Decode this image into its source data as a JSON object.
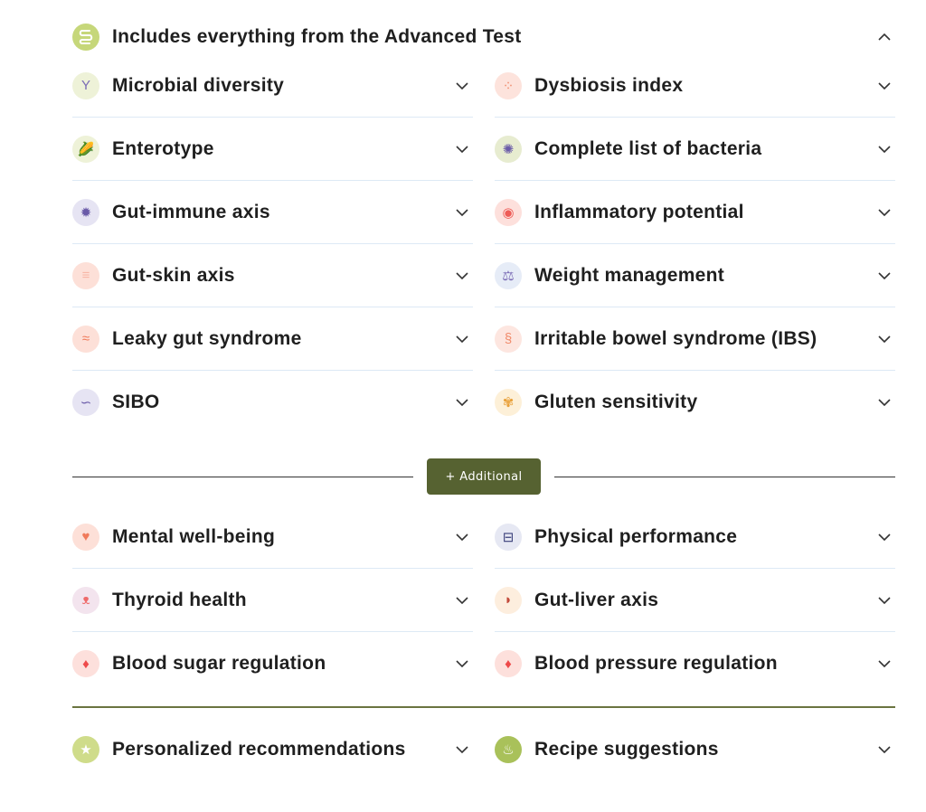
{
  "header": {
    "label": "Includes everything from the Advanced Test",
    "icon": "intestine-icon",
    "expanded": true
  },
  "advanced_items": [
    {
      "label": "Microbial diversity",
      "icon": "bacteria-mix-icon",
      "bg": "#eef2d8",
      "fg": "#7a6bb5",
      "glyph": "Y"
    },
    {
      "label": "Dysbiosis index",
      "icon": "bacteria-dots-icon",
      "bg": "#fde3dc",
      "fg": "#f08a6a",
      "glyph": "⁘"
    },
    {
      "label": "Enterotype",
      "icon": "corn-icon",
      "bg": "#eef2d8",
      "fg": "#e2a23b",
      "glyph": "🌽"
    },
    {
      "label": "Complete list of bacteria",
      "icon": "bacterium-icon",
      "bg": "#e7ecd0",
      "fg": "#6a5aa8",
      "glyph": "✺"
    },
    {
      "label": "Gut-immune axis",
      "icon": "virus-icon",
      "bg": "#e6e4f3",
      "fg": "#6a5aa8",
      "glyph": "✹"
    },
    {
      "label": "Inflammatory potential",
      "icon": "inflammation-icon",
      "bg": "#fde0dc",
      "fg": "#ee5c57",
      "glyph": "◉"
    },
    {
      "label": "Gut-skin axis",
      "icon": "skin-layers-icon",
      "bg": "#fde0d8",
      "fg": "#f8b7a7",
      "glyph": "≡"
    },
    {
      "label": "Weight management",
      "icon": "scale-icon",
      "bg": "#e6ecf7",
      "fg": "#7a6bb5",
      "glyph": "⚖"
    },
    {
      "label": "Leaky gut syndrome",
      "icon": "leaky-gut-icon",
      "bg": "#fde0d8",
      "fg": "#f07a5a",
      "glyph": "≈"
    },
    {
      "label": "Irritable bowel syndrome (IBS)",
      "icon": "bowel-icon",
      "bg": "#fde6e0",
      "fg": "#f08a6a",
      "glyph": "§"
    },
    {
      "label": "SIBO",
      "icon": "small-intestine-icon",
      "bg": "#e6e4f3",
      "fg": "#6a5aa8",
      "glyph": "∽"
    },
    {
      "label": "Gluten sensitivity",
      "icon": "wheat-icon",
      "bg": "#fdf0d8",
      "fg": "#e9a13b",
      "glyph": "✾"
    }
  ],
  "additional_button": {
    "label": "+ Additional"
  },
  "additional_items": [
    {
      "label": "Mental well-being",
      "icon": "head-heart-icon",
      "bg": "#fde0d8",
      "fg": "#f07a5a",
      "glyph": "♥"
    },
    {
      "label": "Physical performance",
      "icon": "dumbbell-icon",
      "bg": "#e6e8f3",
      "fg": "#3a3f7a",
      "glyph": "⊟"
    },
    {
      "label": "Thyroid health",
      "icon": "thyroid-icon",
      "bg": "#f3e4ee",
      "fg": "#ee6a6a",
      "glyph": "ᴥ"
    },
    {
      "label": "Gut-liver axis",
      "icon": "liver-icon",
      "bg": "#fdeede",
      "fg": "#c24a3a",
      "glyph": "◗"
    },
    {
      "label": "Blood sugar regulation",
      "icon": "blood-drop-sugar-icon",
      "bg": "#fde0dc",
      "fg": "#ee4a4a",
      "glyph": "♦"
    },
    {
      "label": "Blood pressure regulation",
      "icon": "blood-drop-pulse-icon",
      "bg": "#fde0dc",
      "fg": "#ee4a4a",
      "glyph": "♦"
    }
  ],
  "bottom_items": [
    {
      "label": "Personalized recommendations",
      "icon": "star-badge-icon",
      "bg": "#cfdc8a",
      "fg": "#ffffff",
      "glyph": "★"
    },
    {
      "label": "Recipe suggestions",
      "icon": "chef-hat-icon",
      "bg": "#a9c15a",
      "fg": "#ffffff",
      "glyph": "♨"
    }
  ],
  "colors": {
    "accent": "#566231",
    "header_icon_bg": "#c6d77a",
    "divider": "#dde9f5",
    "olive_line": "#6b7440"
  }
}
